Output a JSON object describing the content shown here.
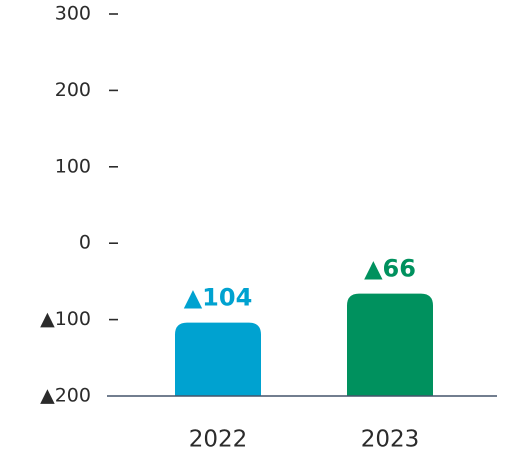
{
  "chart_data": {
    "type": "bar",
    "title": "",
    "xlabel": "",
    "ylabel": "",
    "categories": [
      "2022",
      "2023"
    ],
    "values": [
      -104,
      -66
    ],
    "data_labels": [
      "▲104",
      "▲66"
    ],
    "colors": [
      "#00a2d0",
      "#00915e"
    ],
    "ylim": [
      -200,
      300
    ],
    "y_ticks": [
      300,
      200,
      100,
      0,
      -100,
      -200
    ],
    "y_tick_labels": [
      "300",
      "200",
      "100",
      "0",
      "▲100",
      "▲200"
    ],
    "grid": false,
    "legend": "none",
    "axis_color": "#44546a",
    "text_color": "#2b2b2b"
  }
}
